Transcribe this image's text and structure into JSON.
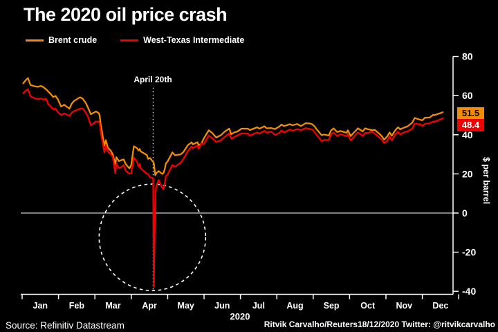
{
  "header": {
    "title": "The 2020 oil price crash"
  },
  "footer": {
    "source": "Source: Refinitiv Datastream",
    "credit": "Ritvik Carvalho/Reuters18/12/2020 Twitter: @ritvikcarvalho"
  },
  "colors": {
    "background": "#000000",
    "axis_and_text": "#ffffff"
  },
  "chart_data": {
    "type": "line",
    "title": "The 2020 oil price crash",
    "x_axis": {
      "label": "2020",
      "categories": [
        "Jan",
        "Feb",
        "Mar",
        "Apr",
        "May",
        "Jun",
        "Jul",
        "Aug",
        "Sep",
        "Oct",
        "Nov",
        "Dec"
      ]
    },
    "y_axis": {
      "label": "$ per barrel",
      "ticks": [
        80,
        60,
        40,
        20,
        0,
        -20,
        -40
      ],
      "range": [
        -40,
        80
      ]
    },
    "grid": "off",
    "legend_position": "top-left",
    "annotations": [
      {
        "type": "vline_dotted",
        "label": "April 20th",
        "x_month_frac": 3.6,
        "y_top_value": 64,
        "y_bottom_value": -40
      },
      {
        "type": "circle_dashed",
        "x_month_frac": 3.58,
        "y_center_value": -12.4,
        "radius_px": 77
      }
    ],
    "series": [
      {
        "name": "Brent crude",
        "color": "#f28c00",
        "end_label": 51.5,
        "points": [
          [
            0.03,
            66.3
          ],
          [
            0.1,
            67.9
          ],
          [
            0.16,
            68.9
          ],
          [
            0.23,
            65.4
          ],
          [
            0.3,
            65.0
          ],
          [
            0.36,
            64.7
          ],
          [
            0.43,
            64.5
          ],
          [
            0.52,
            64.9
          ],
          [
            0.59,
            64.2
          ],
          [
            0.66,
            63.2
          ],
          [
            0.72,
            62.0
          ],
          [
            0.79,
            60.7
          ],
          [
            0.85,
            59.3
          ],
          [
            0.92,
            59.8
          ],
          [
            0.98,
            58.2
          ],
          [
            1.07,
            54.4
          ],
          [
            1.16,
            55.3
          ],
          [
            1.3,
            53.3
          ],
          [
            1.36,
            55.8
          ],
          [
            1.43,
            57.3
          ],
          [
            1.59,
            59.1
          ],
          [
            1.66,
            58.5
          ],
          [
            1.75,
            56.3
          ],
          [
            1.82,
            53.4
          ],
          [
            1.89,
            50.5
          ],
          [
            2.03,
            51.9
          ],
          [
            2.1,
            51.1
          ],
          [
            2.13,
            50.0
          ],
          [
            2.16,
            45.3
          ],
          [
            2.26,
            34.4
          ],
          [
            2.3,
            37.2
          ],
          [
            2.36,
            33.2
          ],
          [
            2.43,
            32.0
          ],
          [
            2.49,
            30.0
          ],
          [
            2.56,
            24.9
          ],
          [
            2.59,
            28.5
          ],
          [
            2.66,
            26.5
          ],
          [
            2.72,
            27.0
          ],
          [
            2.79,
            27.4
          ],
          [
            2.85,
            24.9
          ],
          [
            2.95,
            22.8
          ],
          [
            3.0,
            24.7
          ],
          [
            3.07,
            34.1
          ],
          [
            3.16,
            33.1
          ],
          [
            3.2,
            31.9
          ],
          [
            3.23,
            32.8
          ],
          [
            3.26,
            31.5
          ],
          [
            3.43,
            29.6
          ],
          [
            3.46,
            27.7
          ],
          [
            3.52,
            28.1
          ],
          [
            3.62,
            25.6
          ],
          [
            3.66,
            19.3
          ],
          [
            3.69,
            20.4
          ],
          [
            3.75,
            21.4
          ],
          [
            3.85,
            20.0
          ],
          [
            3.89,
            20.5
          ],
          [
            3.92,
            22.5
          ],
          [
            3.95,
            25.3
          ],
          [
            4.0,
            26.4
          ],
          [
            4.13,
            31.0
          ],
          [
            4.2,
            29.5
          ],
          [
            4.36,
            30.0
          ],
          [
            4.43,
            31.1
          ],
          [
            4.56,
            34.8
          ],
          [
            4.66,
            36.1
          ],
          [
            4.69,
            35.1
          ],
          [
            4.82,
            36.2
          ],
          [
            4.85,
            34.7
          ],
          [
            4.92,
            35.3
          ],
          [
            5.0,
            38.3
          ],
          [
            5.13,
            42.3
          ],
          [
            5.23,
            40.8
          ],
          [
            5.33,
            38.6
          ],
          [
            5.46,
            39.7
          ],
          [
            5.56,
            41.5
          ],
          [
            5.69,
            43.1
          ],
          [
            5.75,
            40.3
          ],
          [
            5.82,
            41.1
          ],
          [
            5.92,
            41.7
          ],
          [
            6.03,
            43.1
          ],
          [
            6.2,
            43.1
          ],
          [
            6.26,
            42.4
          ],
          [
            6.46,
            43.8
          ],
          [
            6.52,
            43.1
          ],
          [
            6.66,
            44.3
          ],
          [
            6.72,
            43.3
          ],
          [
            6.85,
            43.4
          ],
          [
            6.95,
            42.9
          ],
          [
            7.07,
            44.2
          ],
          [
            7.13,
            45.2
          ],
          [
            7.2,
            44.4
          ],
          [
            7.36,
            45.4
          ],
          [
            7.43,
            44.8
          ],
          [
            7.56,
            45.5
          ],
          [
            7.66,
            44.4
          ],
          [
            7.79,
            45.9
          ],
          [
            7.89,
            45.8
          ],
          [
            7.98,
            45.3
          ],
          [
            8.03,
            44.4
          ],
          [
            8.1,
            42.7
          ],
          [
            8.23,
            39.8
          ],
          [
            8.3,
            40.1
          ],
          [
            8.43,
            39.6
          ],
          [
            8.49,
            42.2
          ],
          [
            8.56,
            43.2
          ],
          [
            8.66,
            41.4
          ],
          [
            8.75,
            41.9
          ],
          [
            8.92,
            41.0
          ],
          [
            8.95,
            42.3
          ],
          [
            9.03,
            39.3
          ],
          [
            9.13,
            41.3
          ],
          [
            9.23,
            43.3
          ],
          [
            9.36,
            41.7
          ],
          [
            9.43,
            43.3
          ],
          [
            9.49,
            42.9
          ],
          [
            9.62,
            42.3
          ],
          [
            9.69,
            42.5
          ],
          [
            9.82,
            40.5
          ],
          [
            9.89,
            39.1
          ],
          [
            9.95,
            37.5
          ],
          [
            10.03,
            39.0
          ],
          [
            10.1,
            41.2
          ],
          [
            10.16,
            39.5
          ],
          [
            10.26,
            42.4
          ],
          [
            10.33,
            43.8
          ],
          [
            10.39,
            42.8
          ],
          [
            10.52,
            43.8
          ],
          [
            10.59,
            44.2
          ],
          [
            10.72,
            46.1
          ],
          [
            10.79,
            48.6
          ],
          [
            10.85,
            48.2
          ],
          [
            10.95,
            47.6
          ],
          [
            11.0,
            47.4
          ],
          [
            11.07,
            48.7
          ],
          [
            11.2,
            48.8
          ],
          [
            11.3,
            50.2
          ],
          [
            11.33,
            50.0
          ],
          [
            11.46,
            50.8
          ],
          [
            11.52,
            51.2
          ],
          [
            11.56,
            51.5
          ]
        ]
      },
      {
        "name": "West-Texas Intermediate",
        "color": "#f40000",
        "end_label": 48.4,
        "points": [
          [
            0.03,
            61.2
          ],
          [
            0.1,
            62.5
          ],
          [
            0.16,
            63.3
          ],
          [
            0.23,
            59.6
          ],
          [
            0.3,
            59.0
          ],
          [
            0.36,
            58.5
          ],
          [
            0.43,
            58.2
          ],
          [
            0.52,
            58.5
          ],
          [
            0.59,
            58.0
          ],
          [
            0.66,
            58.3
          ],
          [
            0.72,
            55.6
          ],
          [
            0.79,
            54.3
          ],
          [
            0.85,
            53.1
          ],
          [
            0.92,
            53.3
          ],
          [
            0.98,
            51.6
          ],
          [
            1.07,
            50.1
          ],
          [
            1.16,
            50.9
          ],
          [
            1.3,
            49.6
          ],
          [
            1.36,
            51.2
          ],
          [
            1.43,
            52.1
          ],
          [
            1.59,
            53.3
          ],
          [
            1.66,
            53.4
          ],
          [
            1.75,
            51.4
          ],
          [
            1.82,
            48.7
          ],
          [
            1.89,
            44.8
          ],
          [
            2.03,
            46.8
          ],
          [
            2.1,
            46.8
          ],
          [
            2.13,
            45.9
          ],
          [
            2.16,
            41.3
          ],
          [
            2.26,
            31.1
          ],
          [
            2.3,
            34.4
          ],
          [
            2.36,
            31.5
          ],
          [
            2.43,
            30.2
          ],
          [
            2.49,
            28.7
          ],
          [
            2.56,
            20.4
          ],
          [
            2.59,
            25.2
          ],
          [
            2.66,
            23.0
          ],
          [
            2.72,
            23.4
          ],
          [
            2.79,
            24.5
          ],
          [
            2.85,
            21.5
          ],
          [
            2.95,
            20.1
          ],
          [
            3.0,
            20.3
          ],
          [
            3.07,
            28.3
          ],
          [
            3.16,
            26.1
          ],
          [
            3.2,
            23.6
          ],
          [
            3.23,
            25.1
          ],
          [
            3.26,
            22.8
          ],
          [
            3.43,
            20.1
          ],
          [
            3.46,
            19.9
          ],
          [
            3.52,
            18.3
          ],
          [
            3.6,
            17.8
          ],
          [
            3.62,
            -37.6
          ],
          [
            3.66,
            10.0
          ],
          [
            3.69,
            13.8
          ],
          [
            3.75,
            16.9
          ],
          [
            3.85,
            12.8
          ],
          [
            3.89,
            12.3
          ],
          [
            3.92,
            15.1
          ],
          [
            3.95,
            18.8
          ],
          [
            4.0,
            19.8
          ],
          [
            4.13,
            24.6
          ],
          [
            4.2,
            23.6
          ],
          [
            4.36,
            25.8
          ],
          [
            4.43,
            27.6
          ],
          [
            4.56,
            31.8
          ],
          [
            4.66,
            34.0
          ],
          [
            4.69,
            33.3
          ],
          [
            4.82,
            34.4
          ],
          [
            4.85,
            32.8
          ],
          [
            4.92,
            35.5
          ],
          [
            5.0,
            35.4
          ],
          [
            5.13,
            39.6
          ],
          [
            5.23,
            38.2
          ],
          [
            5.33,
            36.3
          ],
          [
            5.46,
            37.1
          ],
          [
            5.56,
            38.8
          ],
          [
            5.69,
            40.7
          ],
          [
            5.75,
            38.0
          ],
          [
            5.82,
            38.7
          ],
          [
            5.92,
            39.7
          ],
          [
            6.03,
            40.7
          ],
          [
            6.2,
            40.6
          ],
          [
            6.26,
            39.6
          ],
          [
            6.46,
            41.2
          ],
          [
            6.52,
            40.6
          ],
          [
            6.66,
            42.0
          ],
          [
            6.72,
            41.1
          ],
          [
            6.85,
            41.6
          ],
          [
            6.95,
            39.9
          ],
          [
            7.07,
            41.0
          ],
          [
            7.13,
            42.2
          ],
          [
            7.2,
            41.2
          ],
          [
            7.36,
            42.7
          ],
          [
            7.43,
            42.0
          ],
          [
            7.56,
            42.9
          ],
          [
            7.66,
            42.3
          ],
          [
            7.79,
            43.4
          ],
          [
            7.89,
            43.0
          ],
          [
            7.98,
            42.6
          ],
          [
            8.03,
            41.5
          ],
          [
            8.1,
            39.8
          ],
          [
            8.23,
            36.8
          ],
          [
            8.3,
            37.3
          ],
          [
            8.43,
            37.3
          ],
          [
            8.49,
            40.2
          ],
          [
            8.56,
            41.1
          ],
          [
            8.66,
            39.3
          ],
          [
            8.75,
            40.3
          ],
          [
            8.92,
            39.3
          ],
          [
            8.95,
            40.2
          ],
          [
            9.03,
            37.1
          ],
          [
            9.13,
            39.2
          ],
          [
            9.23,
            41.2
          ],
          [
            9.36,
            39.4
          ],
          [
            9.43,
            41.0
          ],
          [
            9.49,
            40.9
          ],
          [
            9.62,
            41.5
          ],
          [
            9.69,
            40.6
          ],
          [
            9.82,
            38.6
          ],
          [
            9.89,
            37.4
          ],
          [
            9.95,
            35.8
          ],
          [
            10.03,
            36.8
          ],
          [
            10.1,
            39.2
          ],
          [
            10.16,
            37.1
          ],
          [
            10.26,
            40.3
          ],
          [
            10.33,
            41.5
          ],
          [
            10.39,
            40.1
          ],
          [
            10.52,
            41.4
          ],
          [
            10.59,
            41.7
          ],
          [
            10.72,
            43.1
          ],
          [
            10.79,
            45.7
          ],
          [
            10.85,
            45.5
          ],
          [
            10.95,
            45.3
          ],
          [
            11.0,
            44.6
          ],
          [
            11.07,
            45.6
          ],
          [
            11.2,
            45.8
          ],
          [
            11.3,
            46.8
          ],
          [
            11.33,
            46.6
          ],
          [
            11.46,
            47.6
          ],
          [
            11.52,
            48.0
          ],
          [
            11.56,
            48.4
          ]
        ]
      }
    ]
  }
}
